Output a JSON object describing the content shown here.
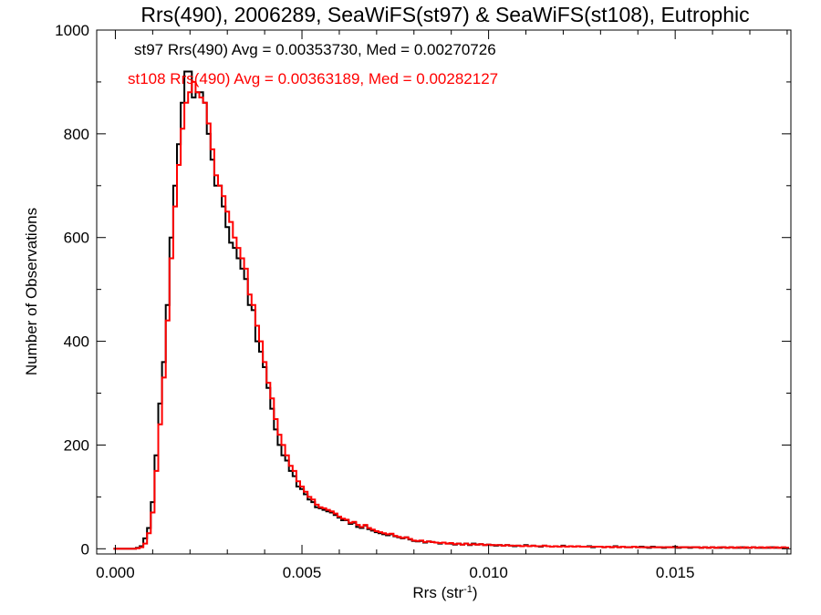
{
  "chart_data": {
    "type": "line",
    "title": "Rrs(490), 2006289, SeaWiFS(st97) & SeaWiFS(st108), Eutrophic",
    "xlabel": "Rrs (str",
    "xlabel_sup": "-1",
    "xlabel_close": ")",
    "ylabel": "Number of Observations",
    "xlim": [
      -0.0005,
      0.0181
    ],
    "ylim": [
      -10,
      1000
    ],
    "xticks": [
      0.0,
      0.005,
      0.01,
      0.015
    ],
    "xtick_labels": [
      "0.000",
      "0.005",
      "0.010",
      "0.015"
    ],
    "yticks": [
      0,
      200,
      400,
      600,
      800,
      1000
    ],
    "ytick_labels": [
      "0",
      "200",
      "400",
      "600",
      "800",
      "1000"
    ],
    "grid": false,
    "legend_position": "top-left",
    "bin_width": 0.0001,
    "x": [
      0.0,
      0.0001,
      0.0002,
      0.0003,
      0.0004,
      0.0005,
      0.0006,
      0.0007,
      0.0008,
      0.0009,
      0.001,
      0.0011,
      0.0012,
      0.0013,
      0.0014,
      0.0015,
      0.0016,
      0.0017,
      0.0018,
      0.0019,
      0.002,
      0.0021,
      0.0022,
      0.0023,
      0.0024,
      0.0025,
      0.0026,
      0.0027,
      0.0028,
      0.0029,
      0.003,
      0.0031,
      0.0032,
      0.0033,
      0.0034,
      0.0035,
      0.0036,
      0.0037,
      0.0038,
      0.0039,
      0.004,
      0.0041,
      0.0042,
      0.0043,
      0.0044,
      0.0045,
      0.0046,
      0.0047,
      0.0048,
      0.0049,
      0.005,
      0.0051,
      0.0052,
      0.0053,
      0.0054,
      0.0055,
      0.0056,
      0.0057,
      0.0058,
      0.0059,
      0.006,
      0.0061,
      0.0062,
      0.0063,
      0.0064,
      0.0065,
      0.0066,
      0.0067,
      0.0068,
      0.0069,
      0.007,
      0.0071,
      0.0072,
      0.0073,
      0.0074,
      0.0075,
      0.0076,
      0.0077,
      0.0078,
      0.0079,
      0.008,
      0.0081,
      0.0082,
      0.0083,
      0.0084,
      0.0085,
      0.0086,
      0.0087,
      0.0088,
      0.0089,
      0.009,
      0.0091,
      0.0092,
      0.0093,
      0.0094,
      0.0095,
      0.0096,
      0.0097,
      0.0098,
      0.0099,
      0.01,
      0.0101,
      0.0102,
      0.0103,
      0.0104,
      0.0105,
      0.0106,
      0.0107,
      0.0108,
      0.0109,
      0.011,
      0.0111,
      0.0112,
      0.0113,
      0.0114,
      0.0115,
      0.0116,
      0.0117,
      0.0118,
      0.0119,
      0.012,
      0.0121,
      0.0122,
      0.0123,
      0.0124,
      0.0125,
      0.0126,
      0.0127,
      0.0128,
      0.0129,
      0.013,
      0.0131,
      0.0132,
      0.0133,
      0.0134,
      0.0135,
      0.0136,
      0.0137,
      0.0138,
      0.0139,
      0.014,
      0.0141,
      0.0142,
      0.0143,
      0.0144,
      0.0145,
      0.0146,
      0.0147,
      0.0148,
      0.0149,
      0.015,
      0.0151,
      0.0152,
      0.0153,
      0.0154,
      0.0155,
      0.0156,
      0.0157,
      0.0158,
      0.0159,
      0.016,
      0.0161,
      0.0162,
      0.0163,
      0.0164,
      0.0165,
      0.0166,
      0.0167,
      0.0168,
      0.0169,
      0.017,
      0.0171,
      0.0172,
      0.0173,
      0.0174,
      0.0175,
      0.0176,
      0.0177,
      0.0178,
      0.0179,
      0.018
    ],
    "series": [
      {
        "name": "st97",
        "color": "#000000",
        "legend": "st97 Rrs(490) Avg = 0.00353730, Med = 0.00270726",
        "values": [
          0,
          0,
          0,
          0,
          0,
          0,
          2,
          5,
          20,
          40,
          90,
          180,
          280,
          360,
          470,
          600,
          700,
          780,
          860,
          920,
          920,
          870,
          880,
          880,
          860,
          800,
          750,
          700,
          700,
          660,
          620,
          590,
          580,
          560,
          540,
          520,
          470,
          460,
          400,
          380,
          350,
          310,
          270,
          230,
          200,
          180,
          170,
          150,
          140,
          120,
          115,
          105,
          95,
          90,
          80,
          78,
          75,
          72,
          70,
          65,
          60,
          55,
          55,
          48,
          50,
          42,
          40,
          45,
          38,
          35,
          32,
          30,
          28,
          26,
          28,
          24,
          22,
          20,
          22,
          18,
          15,
          14,
          15,
          12,
          14,
          13,
          12,
          10,
          12,
          10,
          10,
          8,
          10,
          8,
          10,
          7,
          10,
          8,
          9,
          7,
          8,
          7,
          6,
          7,
          6,
          7,
          6,
          5,
          6,
          5,
          7,
          5,
          6,
          5,
          4,
          6,
          5,
          4,
          5,
          4,
          6,
          4,
          5,
          4,
          5,
          4,
          4,
          5,
          3,
          4,
          4,
          3,
          4,
          3,
          5,
          3,
          4,
          3,
          3,
          4,
          3,
          4,
          3,
          2,
          4,
          3,
          3,
          2,
          3,
          3,
          4,
          2,
          3,
          3,
          2,
          3,
          3,
          2,
          3,
          2,
          3,
          2,
          2,
          3,
          2,
          3,
          2,
          2,
          3,
          2,
          2,
          3,
          2,
          2,
          2,
          2,
          3,
          2,
          2,
          2,
          2
        ]
      },
      {
        "name": "st108",
        "color": "#ff0000",
        "legend": "st108 Rrs(490) Avg = 0.00363189, Med = 0.00282127",
        "values": [
          0,
          0,
          0,
          0,
          0,
          0,
          1,
          3,
          10,
          30,
          70,
          150,
          240,
          330,
          440,
          560,
          660,
          740,
          810,
          860,
          880,
          900,
          880,
          870,
          860,
          820,
          770,
          720,
          700,
          680,
          650,
          630,
          600,
          580,
          560,
          540,
          490,
          470,
          430,
          400,
          360,
          320,
          290,
          250,
          220,
          200,
          180,
          160,
          150,
          130,
          120,
          110,
          100,
          95,
          85,
          80,
          78,
          75,
          72,
          68,
          62,
          58,
          56,
          50,
          52,
          46,
          42,
          46,
          40,
          37,
          34,
          32,
          30,
          28,
          29,
          25,
          23,
          21,
          22,
          19,
          16,
          15,
          16,
          13,
          14,
          13,
          12,
          11,
          12,
          10,
          11,
          9,
          10,
          8,
          10,
          8,
          9,
          8,
          9,
          7,
          8,
          7,
          7,
          7,
          6,
          7,
          6,
          6,
          6,
          5,
          6,
          5,
          6,
          5,
          5,
          6,
          5,
          4,
          5,
          4,
          5,
          4,
          5,
          4,
          5,
          4,
          4,
          4,
          4,
          4,
          4,
          3,
          4,
          3,
          4,
          3,
          4,
          3,
          3,
          4,
          3,
          3,
          3,
          3,
          3,
          3,
          3,
          3,
          3,
          3,
          3,
          3,
          3,
          3,
          3,
          3,
          3,
          2,
          3,
          2,
          3,
          2,
          3,
          3,
          2,
          3,
          2,
          3,
          2,
          3,
          2,
          3,
          2,
          3,
          2,
          3,
          2,
          3,
          2,
          3,
          2
        ]
      }
    ]
  }
}
